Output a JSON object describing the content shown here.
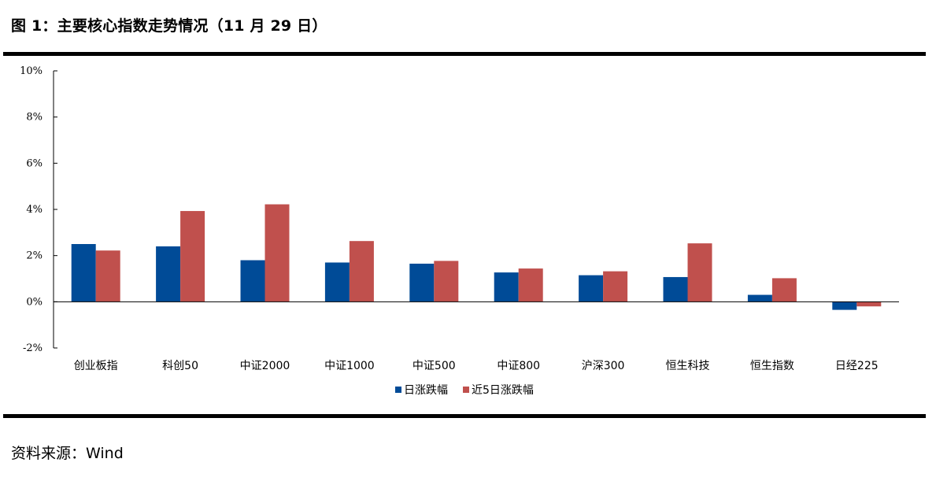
{
  "figure": {
    "title": "图 1：主要核心指数走势情况（11 月 29 日）",
    "source": "资料来源：Wind"
  },
  "chart_data": {
    "type": "bar",
    "categories": [
      "创业板指",
      "科创50",
      "中证2000",
      "中证1000",
      "中证500",
      "中证800",
      "沪深300",
      "恒生科技",
      "恒生指数",
      "日经225"
    ],
    "series": [
      {
        "name": "日涨跌幅",
        "color": "#004B97",
        "values": [
          2.5,
          2.4,
          1.8,
          1.7,
          1.65,
          1.27,
          1.15,
          1.07,
          0.3,
          -0.35
        ]
      },
      {
        "name": "近5日涨跌幅",
        "color": "#C0504D",
        "values": [
          2.22,
          3.93,
          4.22,
          2.63,
          1.77,
          1.44,
          1.32,
          2.53,
          1.02,
          -0.2
        ]
      }
    ],
    "ylim": [
      -2,
      10
    ],
    "yticks": [
      -2,
      0,
      2,
      4,
      6,
      8,
      10
    ],
    "ytick_labels": [
      "-2%",
      "0%",
      "2%",
      "4%",
      "6%",
      "8%",
      "10%"
    ],
    "xlabel": "",
    "ylabel": "",
    "grid": false,
    "legend_position": "bottom-center"
  }
}
